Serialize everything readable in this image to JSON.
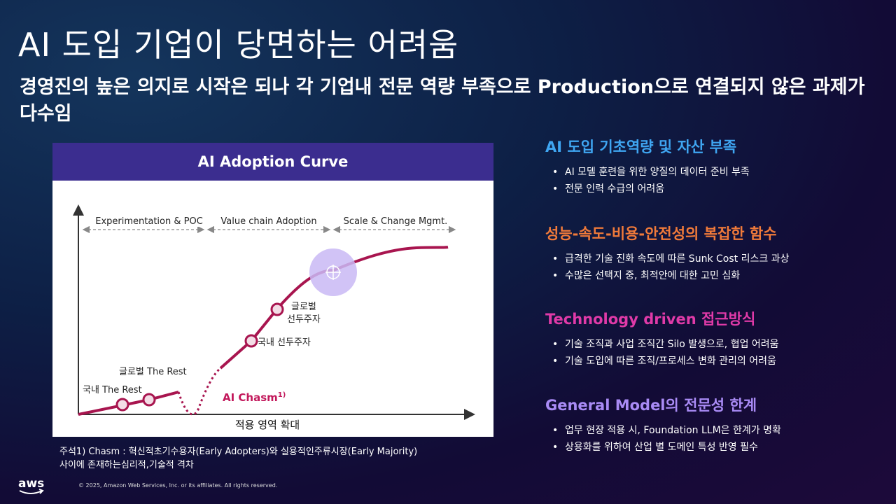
{
  "page": {
    "title": "AI 도입 기업이 당면하는 어려움",
    "subtitle": "경영진의 높은 의지로 시작은 되나 각 기업내 전문 역량 부족으로 Production으로 연결되지 않은 과제가 다수임"
  },
  "chart": {
    "header": "AI Adoption Curve",
    "phases": [
      "Experimentation & POC",
      "Value chain Adoption",
      "Scale & Change Mgmt."
    ],
    "labels": {
      "domestic_rest": "국내 The Rest",
      "global_rest": "글로벌 The Rest",
      "domestic_leader": "국내 선두주자",
      "global_leader_line1": "글로벌",
      "global_leader_line2": "선두주자",
      "chasm": "AI Chasm",
      "chasm_sup": "1)",
      "x_axis": "적용 영역 확대"
    },
    "colors": {
      "curve": "#a8154f",
      "chasm_text": "#c2185b",
      "header_bg": "#3b2d8f",
      "target": "#c9b8f5"
    }
  },
  "chart_data": {
    "type": "line",
    "title": "AI Adoption Curve",
    "xlabel": "적용 영역 확대",
    "ylabel": "",
    "phases": [
      "Experimentation & POC",
      "Value chain Adoption",
      "Scale & Change Mgmt."
    ],
    "annotations": [
      "국내 The Rest",
      "글로벌 The Rest",
      "국내 선두주자",
      "글로벌 선두주자",
      "AI Chasm"
    ]
  },
  "footnote": {
    "line1": "주석1) Chasm : 혁신적초기수용자(Early Adopters)와 실용적인주류시장(Early Majority)",
    "line2": "사이에 존재하는심리적,기술적 격차"
  },
  "footer": {
    "logo": "aws",
    "copyright": "© 2025, Amazon Web Services, Inc. or its affiliates. All rights reserved."
  },
  "sections": [
    {
      "title": "AI 도입 기초역량 및 자산 부족",
      "color": "#3fa6f2",
      "bullets": [
        "AI 모델 훈련을 위한 양질의 데이터 준비 부족",
        "전문 인력 수급의 어려움"
      ]
    },
    {
      "title": "성능-속도-비용-안전성의 복잡한 함수",
      "color": "#f07a3a",
      "bullets": [
        "급격한 기술 진화 속도에 따른 Sunk Cost 리스크 과상",
        "수많은 선택지 중, 최적안에 대한 고민 심화"
      ]
    },
    {
      "title": "Technology driven 접근방식",
      "color": "#e03aa8",
      "bullets": [
        "기술 조직과 사업 조직간 Silo 발생으로, 협업 어려움",
        "기술 도입에 따른 조직/프로세스 변화 관리의 어려움"
      ]
    },
    {
      "title": "General Model의 전문성 한계",
      "color": "#a98bf5",
      "bullets": [
        "업무 현장 적용 시, Foundation LLM은 한계가 명확",
        "상용화를 위하여 산업 별 도메인 특성 반영 필수"
      ]
    }
  ]
}
